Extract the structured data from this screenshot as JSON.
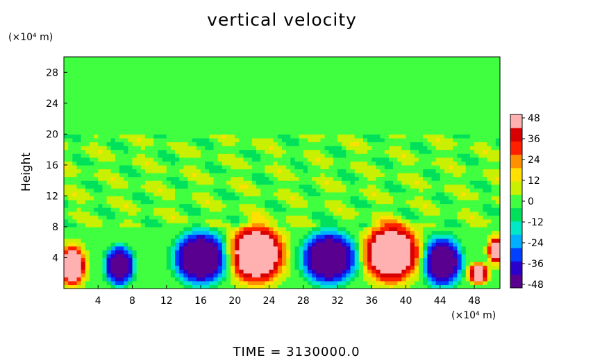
{
  "chart_data": {
    "type": "heatmap",
    "title": "vertical velocity",
    "xlabel": "",
    "ylabel": "Height",
    "x_unit": "(×10⁴ m)",
    "y_unit": "(×10⁴ m)",
    "xlim": [
      0,
      51
    ],
    "ylim": [
      0,
      30
    ],
    "x_ticks": [
      4,
      8,
      12,
      16,
      20,
      24,
      28,
      32,
      36,
      40,
      44,
      48
    ],
    "y_ticks": [
      4,
      8,
      12,
      16,
      20,
      24,
      28
    ],
    "colorbar": {
      "range": [
        -50,
        50
      ],
      "ticks": [
        48,
        36,
        24,
        12,
        0,
        -12,
        -24,
        -36,
        -48
      ],
      "colors": [
        "#5a0090",
        "#2a00cc",
        "#0040ff",
        "#00b0ff",
        "#00e8c8",
        "#00e05a",
        "#40ff40",
        "#c8f000",
        "#ffe000",
        "#ff9000",
        "#ff2000",
        "#d80000",
        "#ffb0b0"
      ]
    },
    "background_value": 2,
    "cells": [
      {
        "x": 1,
        "y": 3,
        "w": 1.3,
        "h": 2.2,
        "v": 45
      },
      {
        "x": 6.5,
        "y": 3,
        "w": 1.5,
        "h": 2.2,
        "v": -45
      },
      {
        "x": 16,
        "y": 4,
        "w": 2.8,
        "h": 3.0,
        "v": -46
      },
      {
        "x": 22.5,
        "y": 4.5,
        "w": 2.8,
        "h": 3.2,
        "v": 47
      },
      {
        "x": 31,
        "y": 4,
        "w": 2.8,
        "h": 3.0,
        "v": -46
      },
      {
        "x": 38.3,
        "y": 4.6,
        "w": 2.8,
        "h": 3.2,
        "v": 47
      },
      {
        "x": 44.3,
        "y": 3.5,
        "w": 2.0,
        "h": 2.8,
        "v": -45
      },
      {
        "x": 48.5,
        "y": 2.0,
        "w": 1.0,
        "h": 1.1,
        "v": 42
      },
      {
        "x": 50.5,
        "y": 5.0,
        "w": 0.8,
        "h": 1.5,
        "v": 40
      }
    ],
    "noise_band": {
      "y_min": 8,
      "y_max": 20,
      "amplitude": 10
    }
  },
  "footer": {
    "time_label": "TIME = 3130000.0"
  }
}
